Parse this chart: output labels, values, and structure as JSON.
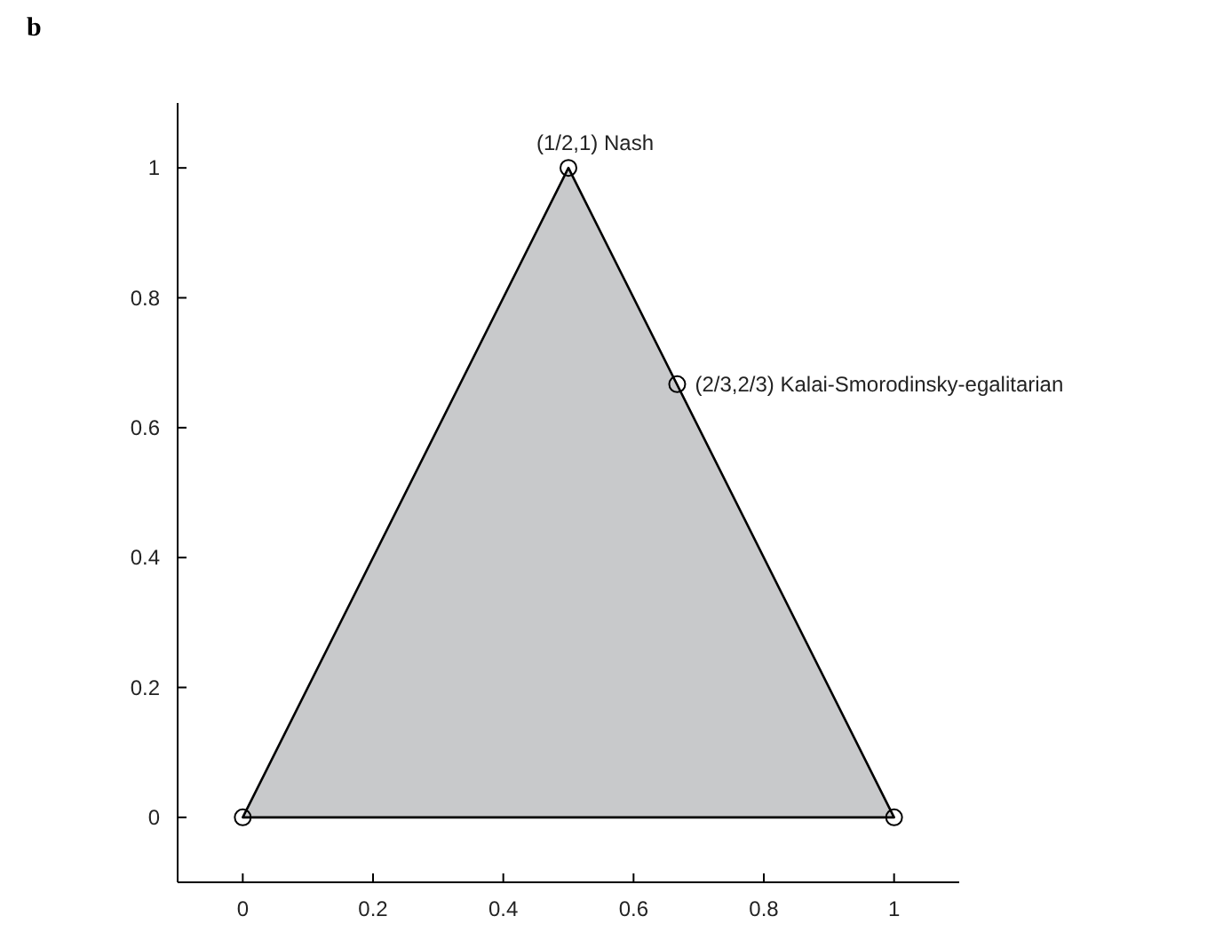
{
  "chart_data": {
    "type": "area",
    "title": "b",
    "xlim": [
      -0.1,
      1.1
    ],
    "xticks": [
      0,
      0.2,
      0.4,
      0.6,
      0.8,
      1
    ],
    "ylim": [
      -0.1,
      1.1
    ],
    "yticks": [
      0,
      0.2,
      0.4,
      0.6,
      0.8,
      1
    ],
    "grid": false,
    "series": [
      {
        "type": "area",
        "color": "#c8c9cb",
        "x": [
          0,
          0.5,
          1
        ],
        "values": [
          0,
          1,
          0
        ]
      },
      {
        "type": "scatter",
        "marker": "circle",
        "color": "#000000",
        "x": [
          0,
          0.5,
          0.667,
          1
        ],
        "values": [
          0,
          1,
          0.667,
          0
        ]
      }
    ],
    "annotations": [
      {
        "text": "(1/2,1)  Nash",
        "x": 0.5,
        "y": 1
      },
      {
        "text": "(2/3,2/3)  Kalai-Smorodinsky-egalitarian",
        "x": 0.667,
        "y": 0.667
      }
    ]
  }
}
